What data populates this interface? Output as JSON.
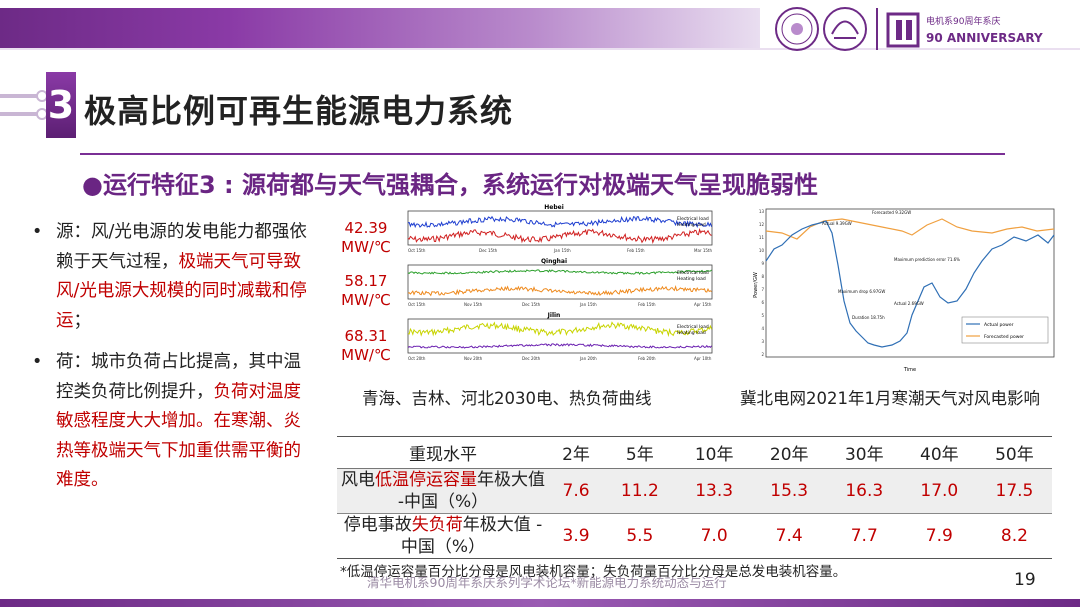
{
  "title": "极高比例可再生能源电力系统",
  "section_number": "3",
  "subtitle": "●运行特征3 : 源荷都与天气强耦合，系统运行对极端天气呈现脆弱性",
  "logos": {
    "anniversary_text": "ANNIVERSARY",
    "dept_text": "电机系90周年系庆"
  },
  "bullets": [
    {
      "mark": "•",
      "normal": "源：风/光电源的发电能力都强依赖于天气过程，",
      "highlight": "极端天气可导致风/光电源大规模的同时减载和停运",
      "tail": "；"
    },
    {
      "mark": "•",
      "normal": "荷：城市负荷占比提高，其中温控类负荷比例提升，",
      "highlight": "负荷对温度敏感程度大大增加。在寒潮、炎热等极端天气下加重供需平衡的难度。",
      "tail": ""
    }
  ],
  "load_panels": [
    {
      "value_line1": "42.39",
      "value_line2": "MW/℃",
      "region": "Hebei",
      "x_ticks": [
        "Oct 15th",
        "Dec 15th",
        "Jan 15th",
        "Feb 15th",
        "Mar 15th"
      ],
      "legend": [
        "Electrical load",
        "Heating load"
      ]
    },
    {
      "value_line1": "58.17",
      "value_line2": "MW/℃",
      "region": "Qinghai",
      "x_ticks": [
        "Oct 15th",
        "Nov 15th",
        "Dec 15th",
        "Jan 15th",
        "Feb 15th",
        "Apr 15th"
      ],
      "legend": [
        "Electrical load",
        "Heating load"
      ]
    },
    {
      "value_line1": "68.31",
      "value_line2": "MW/℃",
      "region": "Jilin",
      "x_ticks": [
        "Oct 20th",
        "Nov 20th",
        "Dec 20th",
        "Jan 20th",
        "Feb 20th",
        "Apr 10th"
      ],
      "legend": [
        "Electrical load",
        "Heating load"
      ]
    }
  ],
  "wind_chart": {
    "y_label": "Power/GW",
    "x_label": "Time",
    "y_ticks": [
      "13",
      "12",
      "11",
      "10",
      "9",
      "8",
      "7",
      "6",
      "5",
      "4",
      "3",
      "2"
    ],
    "annotations": [
      "Actual 9.39GW",
      "Forecasted 9.32GW",
      "Maximum prediction error 71.6%",
      "Maximum drop 6.97GW",
      "Duration 18.75h",
      "Actual 2.69GW"
    ],
    "legend": [
      "Actual power",
      "Forecasted power"
    ]
  },
  "captions": {
    "left": "青海、吉林、河北2030电、热负荷曲线",
    "right": "冀北电网2021年1月寒潮天气对风电影响"
  },
  "table": {
    "header_label": "重现水平",
    "columns": [
      "2年",
      "5年",
      "10年",
      "20年",
      "30年",
      "40年",
      "50年"
    ],
    "rows": [
      {
        "label_pre": "风电",
        "label_hl": "低温停运容量",
        "label_post": "年极大值",
        "label_line2": "-中国（%）",
        "values": [
          "7.6",
          "11.2",
          "13.3",
          "15.3",
          "16.3",
          "17.0",
          "17.5"
        ]
      },
      {
        "label_pre": "停电事故",
        "label_hl": "失负荷",
        "label_post": "年极大值 -",
        "label_line2": "中国（%）",
        "values": [
          "3.9",
          "5.5",
          "7.0",
          "7.4",
          "7.7",
          "7.9",
          "8.2"
        ]
      }
    ]
  },
  "footnote": "*低温停运容量百分比分母是风电装机容量；失负荷量百分比分母是总发电装机容量。",
  "footer": "清华电机系90周年系庆系列学术论坛*新能源电力系统动态与运行",
  "page_number": "19",
  "colors": {
    "purple": "#6d2a86",
    "red_highlight": "#c00000"
  }
}
